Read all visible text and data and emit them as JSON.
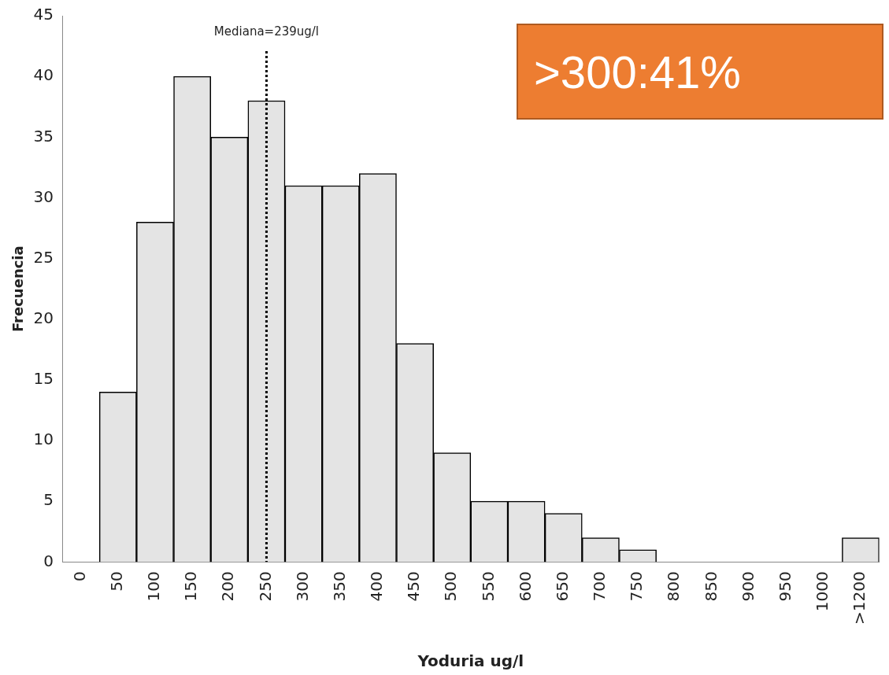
{
  "chart_data": {
    "type": "bar",
    "xlabel": "Yoduria ug/l",
    "ylabel": "Frecuencia",
    "categories": [
      "0",
      "50",
      "100",
      "150",
      "200",
      "250",
      "300",
      "350",
      "400",
      "450",
      "500",
      "550",
      "600",
      "650",
      "700",
      "750",
      "800",
      "850",
      "900",
      "950",
      "1000",
      ">1200"
    ],
    "values": [
      0,
      14,
      28,
      40,
      35,
      38,
      31,
      31,
      32,
      18,
      9,
      5,
      5,
      4,
      2,
      1,
      0,
      0,
      0,
      0,
      0,
      2
    ],
    "color": "#e4e4e4",
    "ylim": [
      0,
      45
    ],
    "yticks": [
      0,
      5,
      10,
      15,
      20,
      25,
      30,
      35,
      40,
      45
    ],
    "grid": false,
    "legend": false,
    "ref_lines": [
      {
        "axis": "x",
        "value": "250",
        "label": "Mediana=239ug/l",
        "line_style": "dotted"
      }
    ],
    "annotations": [
      ">300:41%"
    ]
  }
}
